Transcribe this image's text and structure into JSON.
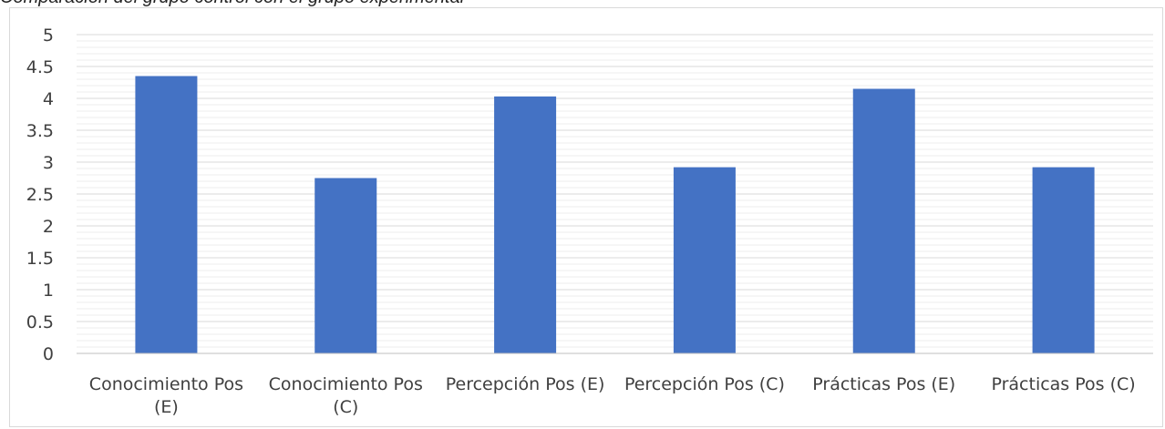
{
  "caption": {
    "text": "Comparación del grupo control con el grupo experimental"
  },
  "colors": {
    "bar": "#4472C4",
    "grid_major": "#d9d9d9",
    "grid_minor": "#eeeeee",
    "axis": "#bfbfbf",
    "text": "#404040"
  },
  "chart_data": {
    "type": "bar",
    "title": "",
    "xlabel": "",
    "ylabel": "",
    "ylim": [
      0,
      5
    ],
    "yticks": [
      "0",
      "0.5",
      "1",
      "1.5",
      "2",
      "2.5",
      "3",
      "3.5",
      "4",
      "4.5",
      "5"
    ],
    "categories": [
      [
        "Conocimiento Pos",
        "(E)"
      ],
      [
        "Conocimiento Pos",
        "(C)"
      ],
      [
        "Percepción Pos (E)"
      ],
      [
        "Percepción Pos (C)"
      ],
      [
        "Prácticas Pos (E)"
      ],
      [
        "Prácticas Pos (C)"
      ]
    ],
    "values": [
      4.35,
      2.75,
      4.03,
      2.92,
      4.15,
      2.92
    ],
    "grid": true,
    "legend": "none"
  }
}
